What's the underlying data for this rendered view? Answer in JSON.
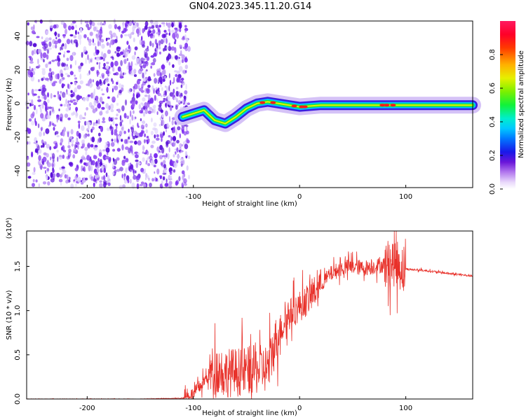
{
  "title": "GN04.2023.345.11.20.G14",
  "chart_data": [
    {
      "type": "heatmap",
      "xlabel": "Height of straight line (km)",
      "ylabel": "Frequency (Hz)",
      "xlim": [
        -257,
        163
      ],
      "ylim": [
        -50,
        49
      ],
      "x_ticks": [
        -200,
        -100,
        0,
        100
      ],
      "y_ticks": [
        -40,
        -20,
        0,
        20,
        40
      ],
      "colorbar": {
        "label": "Normalized spectral amplitude",
        "range": [
          0,
          1
        ],
        "ticks": [
          "0.0",
          "0.2",
          "0.4",
          "0.6",
          "0.8"
        ],
        "tick_values": [
          0.0,
          0.2,
          0.4,
          0.6,
          0.8
        ]
      },
      "noise_region_x": [
        -257,
        -108
      ],
      "signal_track": [
        {
          "x": -110,
          "y": -8
        },
        {
          "x": -100,
          "y": -6
        },
        {
          "x": -90,
          "y": -4
        },
        {
          "x": -80,
          "y": -10
        },
        {
          "x": -70,
          "y": -12
        },
        {
          "x": -60,
          "y": -8
        },
        {
          "x": -50,
          "y": -3
        },
        {
          "x": -40,
          "y": 0
        },
        {
          "x": -30,
          "y": 1
        },
        {
          "x": -20,
          "y": 0
        },
        {
          "x": -10,
          "y": -1
        },
        {
          "x": 0,
          "y": -2
        },
        {
          "x": 20,
          "y": -1
        },
        {
          "x": 60,
          "y": -1
        },
        {
          "x": 100,
          "y": -1
        },
        {
          "x": 163,
          "y": -1
        }
      ]
    },
    {
      "type": "line",
      "xlabel": "Height of straight line (km)",
      "ylabel": "SNR (10 * v/v)",
      "exponent_label": "(x10⁴)",
      "xlim": [
        -257,
        163
      ],
      "ylim": [
        0,
        1.9
      ],
      "x_ticks": [
        -200,
        -100,
        0,
        100
      ],
      "y_ticks": [
        "0.0",
        "0.5",
        "1.0",
        "1.5"
      ],
      "y_tick_values": [
        0.0,
        0.5,
        1.0,
        1.5
      ],
      "color": "#e8312a",
      "series": [
        {
          "x": [
            -257,
            -200,
            -150,
            -110,
            -100,
            -90,
            -80,
            -70,
            -60,
            -50,
            -40,
            -30,
            -20,
            -10,
            0,
            10,
            20,
            30,
            40,
            50,
            60,
            70,
            80,
            90,
            95,
            100,
            120,
            140,
            163
          ],
          "y": [
            0.0,
            0.0,
            0.0,
            0.01,
            0.05,
            0.2,
            0.35,
            0.3,
            0.3,
            0.32,
            0.33,
            0.35,
            0.75,
            0.95,
            1.05,
            1.15,
            1.3,
            1.42,
            1.48,
            1.5,
            1.48,
            1.5,
            1.52,
            1.55,
            1.5,
            1.47,
            1.45,
            1.42,
            1.39
          ]
        }
      ]
    }
  ]
}
